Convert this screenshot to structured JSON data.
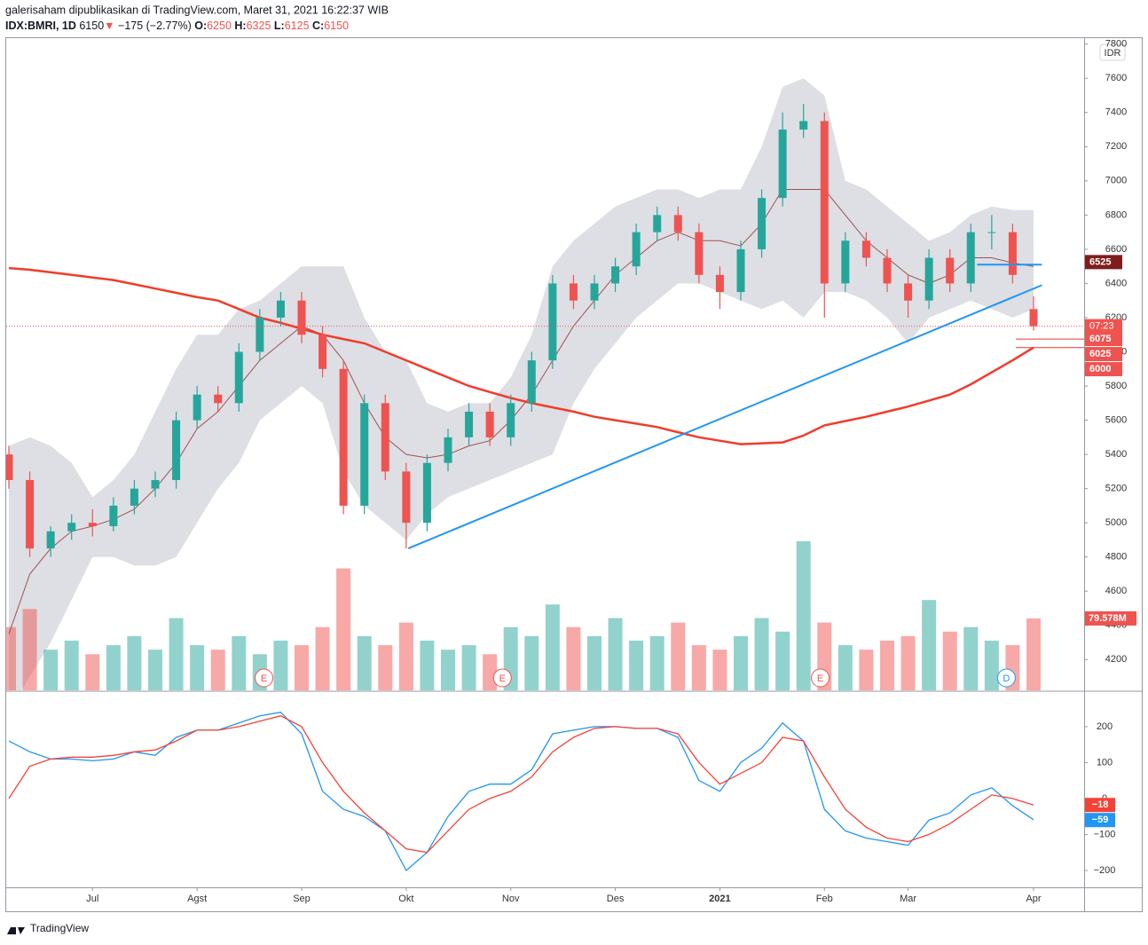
{
  "chart_data": {
    "type": "candlestick",
    "header": "galerisaham dipublikasikan di TradingView.com, Maret 31, 2021 16:22:37 WIB",
    "symbol": "IDX:BMRI, 1D",
    "last": "6150",
    "arrow": "▼",
    "change": "−175 (−2.77%)",
    "ohlc_labels": [
      "O:",
      "H:",
      "L:",
      "C:"
    ],
    "ohlc_values": [
      "6250",
      "6325",
      "6125",
      "6150"
    ],
    "currency": "IDR",
    "logo": "TradingView",
    "categories": [
      null,
      null,
      null,
      null,
      "Jul",
      null,
      null,
      null,
      null,
      "Agst",
      null,
      null,
      null,
      null,
      "Sep",
      null,
      null,
      null,
      null,
      "Okt",
      null,
      null,
      null,
      null,
      "Nov",
      null,
      null,
      null,
      null,
      "Des",
      null,
      null,
      null,
      null,
      "2021",
      null,
      null,
      null,
      null,
      "Feb",
      null,
      null,
      null,
      "Mar",
      null,
      null,
      null,
      null,
      null,
      "Apr"
    ],
    "open": [
      5400,
      5250,
      4850,
      4950,
      5000,
      4980,
      5100,
      5200,
      5250,
      5600,
      5750,
      5700,
      6000,
      6200,
      6300,
      6100,
      5900,
      5100,
      5700,
      5300,
      5000,
      5350,
      5500,
      5650,
      5500,
      5700,
      5950,
      6400,
      6300,
      6400,
      6500,
      6700,
      6800,
      6700,
      6450,
      6350,
      6600,
      6900,
      7300,
      7350,
      6400,
      6650,
      6550,
      6400,
      6300,
      6550,
      6400,
      6700,
      6700,
      6250
    ],
    "high": [
      5450,
      5300,
      4980,
      5050,
      5080,
      5150,
      5250,
      5300,
      5650,
      5800,
      5800,
      6050,
      6250,
      6350,
      6350,
      6150,
      5950,
      5750,
      5750,
      5350,
      5400,
      5550,
      5700,
      5700,
      5750,
      6000,
      6450,
      6450,
      6450,
      6550,
      6750,
      6850,
      6850,
      6750,
      6500,
      6650,
      6950,
      7400,
      7450,
      7400,
      6700,
      6700,
      6600,
      6450,
      6600,
      6600,
      6750,
      6800,
      6750,
      6325
    ],
    "low": [
      5200,
      4800,
      4800,
      4900,
      4920,
      4950,
      5050,
      5150,
      5200,
      5550,
      5650,
      5650,
      5950,
      6150,
      6050,
      5850,
      5050,
      5050,
      5250,
      4850,
      4950,
      5300,
      5450,
      5450,
      5450,
      5650,
      5900,
      6250,
      6250,
      6350,
      6450,
      6650,
      6650,
      6400,
      6250,
      6300,
      6550,
      6850,
      7250,
      6200,
      6350,
      6500,
      6350,
      6200,
      6250,
      6350,
      6350,
      6600,
      6400,
      6125
    ],
    "close": [
      5250,
      4850,
      4950,
      5000,
      4980,
      5100,
      5200,
      5250,
      5600,
      5750,
      5700,
      6000,
      6200,
      6300,
      6100,
      5900,
      5100,
      5700,
      5300,
      5000,
      5350,
      5500,
      5650,
      5500,
      5700,
      5950,
      6400,
      6300,
      6400,
      6500,
      6700,
      6800,
      6700,
      6450,
      6350,
      6600,
      6900,
      7300,
      7350,
      6400,
      6650,
      6550,
      6400,
      6300,
      6550,
      6400,
      6700,
      6700,
      6450,
      6150
    ],
    "up_color": "#26a69a",
    "down_color": "#ef5350",
    "ylim": [
      4020,
      7840
    ],
    "yticks": [
      4200,
      4400,
      4600,
      4800,
      5000,
      5200,
      5400,
      5600,
      5800,
      6000,
      6200,
      6400,
      6600,
      6800,
      7000,
      7200,
      7400,
      7600,
      7800
    ],
    "bollinger": {
      "fill": "#d1d4dc",
      "mid_color": "#a0524d",
      "upper": [
        5450,
        5500,
        5450,
        5350,
        5150,
        5250,
        5400,
        5650,
        5900,
        6100,
        6100,
        6250,
        6300,
        6400,
        6500,
        6500,
        6500,
        6200,
        6000,
        5950,
        5700,
        5650,
        5700,
        5700,
        5850,
        6100,
        6500,
        6650,
        6750,
        6850,
        6900,
        6950,
        6950,
        6900,
        6950,
        6950,
        7200,
        7550,
        7600,
        7500,
        7000,
        6950,
        6850,
        6750,
        6650,
        6700,
        6800,
        6850,
        6830,
        6830
      ],
      "middle": [
        4350,
        4700,
        4850,
        4950,
        4980,
        5020,
        5080,
        5200,
        5350,
        5550,
        5650,
        5800,
        5950,
        6050,
        6150,
        6100,
        5950,
        5700,
        5500,
        5400,
        5380,
        5400,
        5450,
        5480,
        5600,
        5750,
        5950,
        6150,
        6300,
        6450,
        6550,
        6650,
        6700,
        6650,
        6650,
        6620,
        6750,
        6950,
        6950,
        6950,
        6800,
        6650,
        6550,
        6450,
        6400,
        6450,
        6550,
        6550,
        6520,
        6500
      ],
      "lower": [
        3900,
        4100,
        4300,
        4550,
        4800,
        4800,
        4750,
        4750,
        4800,
        5000,
        5200,
        5350,
        5600,
        5700,
        5800,
        5700,
        5300,
        5100,
        5000,
        4900,
        5050,
        5150,
        5200,
        5250,
        5300,
        5350,
        5400,
        5700,
        5900,
        6050,
        6200,
        6300,
        6400,
        6400,
        6350,
        6300,
        6250,
        6300,
        6200,
        6350,
        6350,
        6300,
        6200,
        6050,
        6200,
        6250,
        6300,
        6250,
        6200,
        6250
      ]
    },
    "ma200": {
      "color": "#f23b2a",
      "values": [
        6490,
        6480,
        6465,
        6450,
        6435,
        6420,
        6395,
        6370,
        6345,
        6320,
        6300,
        6250,
        6200,
        6170,
        6135,
        6100,
        6075,
        6050,
        6000,
        5950,
        5900,
        5850,
        5800,
        5765,
        5730,
        5700,
        5675,
        5650,
        5620,
        5600,
        5580,
        5560,
        5530,
        5500,
        5480,
        5460,
        5465,
        5470,
        5510,
        5570,
        5595,
        5620,
        5650,
        5680,
        5715,
        5750,
        5810,
        5880,
        5950,
        6025
      ]
    },
    "volume": {
      "up_color": "rgba(38,166,154,0.5)",
      "down_color": "rgba(239,83,80,0.5)",
      "last_label": "79.578M",
      "label_color": "#ef5350",
      "values": [
        70,
        90,
        45,
        55,
        40,
        50,
        60,
        45,
        80,
        50,
        45,
        60,
        40,
        55,
        50,
        70,
        135,
        60,
        50,
        75,
        55,
        45,
        50,
        40,
        70,
        60,
        95,
        70,
        60,
        80,
        55,
        60,
        75,
        50,
        45,
        60,
        80,
        65,
        165,
        75,
        50,
        45,
        55,
        60,
        100,
        65,
        70,
        55,
        50,
        79.578
      ]
    },
    "trend_lines": [
      {
        "color": "#2196f3",
        "from": [
          19.1,
          4850
        ],
        "to": [
          49.4,
          6390
        ]
      },
      {
        "color": "#2196f3",
        "from": [
          46.3,
          6510
        ],
        "to": [
          49.4,
          6510
        ]
      }
    ],
    "horizontal_lines": [
      {
        "value": 6075,
        "color": "#e53935"
      },
      {
        "value": 6025,
        "color": "#e53935"
      }
    ],
    "price_labels": [
      {
        "value": 6525,
        "color": "#7f1d1d"
      },
      {
        "value": 6075,
        "color": "#ef5350"
      },
      {
        "value": 6025,
        "color": "#ef5350"
      },
      {
        "value": 6000,
        "color": "#ef5350"
      }
    ],
    "countdown": "07:23",
    "events": [
      {
        "label": "E",
        "at": 12.2,
        "color": "#ef5350"
      },
      {
        "label": "E",
        "at": 23.6,
        "color": "#ef5350"
      },
      {
        "label": "E",
        "at": 38.8,
        "color": "#ef5350"
      },
      {
        "label": "D",
        "at": 47.7,
        "color": "#2196f3"
      }
    ],
    "macd": {
      "ylim": [
        -247,
        296
      ],
      "yticks": [
        {
          "value": -200,
          "label": "−200"
        },
        {
          "value": -100,
          "label": "−100"
        },
        0,
        100,
        200
      ],
      "series": [
        {
          "name": "MACD",
          "color": "#2196f3",
          "last_label": "−59",
          "values": [
            160,
            130,
            110,
            110,
            105,
            110,
            130,
            120,
            170,
            190,
            190,
            210,
            230,
            240,
            180,
            20,
            -30,
            -50,
            -90,
            -200,
            -150,
            -50,
            20,
            40,
            40,
            80,
            180,
            190,
            200,
            200,
            195,
            195,
            170,
            50,
            20,
            100,
            140,
            210,
            160,
            -30,
            -90,
            -110,
            -120,
            -130,
            -60,
            -40,
            10,
            30,
            -20,
            -59
          ]
        },
        {
          "name": "Signal",
          "color": "#f44336",
          "last_label": "−18",
          "values": [
            0,
            90,
            110,
            115,
            115,
            120,
            130,
            135,
            160,
            190,
            190,
            200,
            215,
            230,
            200,
            100,
            20,
            -40,
            -90,
            -140,
            -150,
            -90,
            -30,
            0,
            20,
            60,
            130,
            170,
            195,
            200,
            195,
            195,
            180,
            100,
            40,
            70,
            100,
            170,
            160,
            60,
            -30,
            -80,
            -110,
            -120,
            -100,
            -70,
            -30,
            10,
            0,
            -18
          ]
        }
      ]
    }
  }
}
